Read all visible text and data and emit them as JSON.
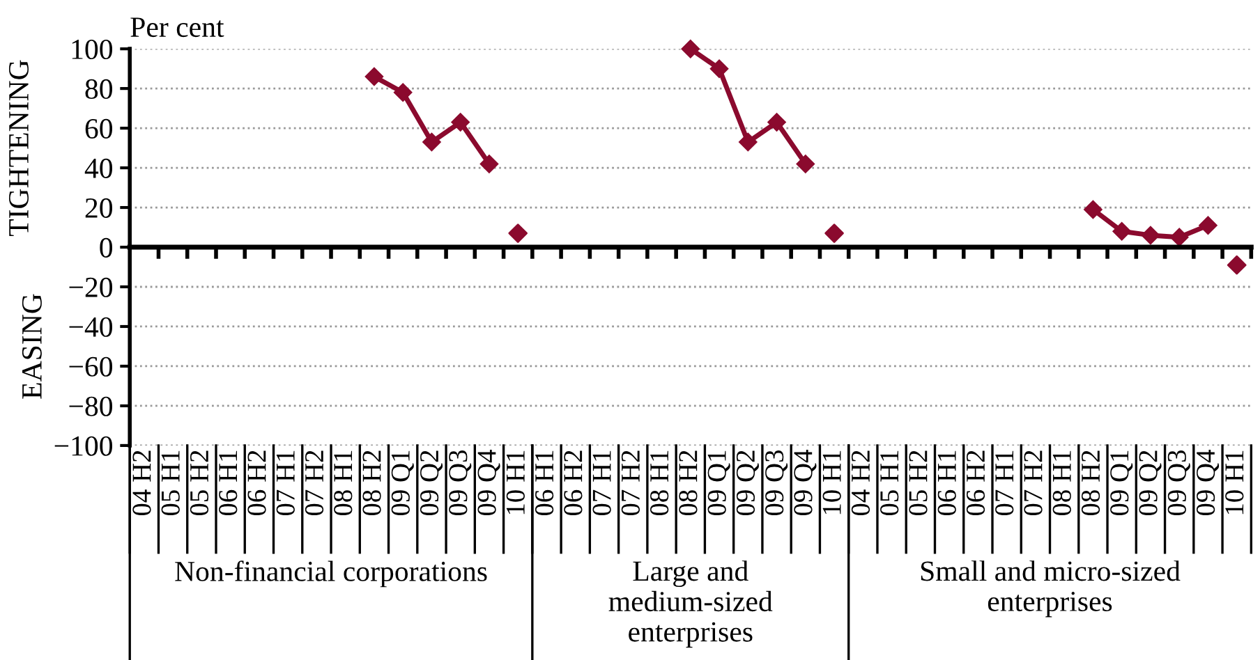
{
  "chart_data": {
    "type": "line",
    "ylabel": "TIGHTENING",
    "annotations": [
      "Per cent",
      "EASING",
      "Non-financial corporations",
      "Large and\nmedium-sized\nenterprises",
      "Small and micro-sized\nenterprises"
    ],
    "categories": [
      "04 H2",
      "05 H1",
      "05 H2",
      "06 H1",
      "06 H2",
      "07 H1",
      "07 H2",
      "08 H1",
      "08 H2",
      "09 Q1",
      "09 Q2",
      "09 Q3",
      "09 Q4",
      "10 H1",
      "06 H1",
      "06 H2",
      "07 H1",
      "07 H2",
      "08 H1",
      "08 H2",
      "09 Q1",
      "09 Q2",
      "09 Q3",
      "09 Q4",
      "10 H1",
      "04 H2",
      "05 H1",
      "05 H2",
      "06 H1",
      "06 H2",
      "07 H1",
      "07 H2",
      "08 H1",
      "08 H2",
      "09 Q1",
      "09 Q2",
      "09 Q3",
      "09 Q4",
      "10 H1"
    ],
    "series": [
      {
        "color": "#8b0a2e",
        "values": [
          null,
          null,
          null,
          null,
          null,
          null,
          null,
          null,
          86,
          78,
          53,
          63,
          42,
          null,
          null,
          null,
          null,
          null,
          null,
          100,
          90,
          53,
          63,
          42,
          null,
          null,
          null,
          null,
          null,
          null,
          null,
          null,
          null,
          19,
          8,
          6,
          5,
          11,
          null
        ]
      },
      {
        "type": "scatter",
        "color": "#8b0a2e",
        "values": [
          null,
          null,
          null,
          null,
          null,
          null,
          null,
          null,
          null,
          null,
          null,
          null,
          null,
          7,
          null,
          null,
          null,
          null,
          null,
          null,
          null,
          null,
          null,
          null,
          7,
          null,
          null,
          null,
          null,
          null,
          null,
          null,
          null,
          null,
          null,
          null,
          null,
          null,
          -9
        ]
      }
    ],
    "ylim": [
      -100,
      100
    ],
    "yticks": [
      {
        "value": -100,
        "label": "−100"
      },
      {
        "value": -80,
        "label": "−80"
      },
      {
        "value": -60,
        "label": "−60"
      },
      {
        "value": -40,
        "label": "−40"
      },
      {
        "value": -20,
        "label": "−20"
      },
      0,
      20,
      40,
      60,
      80,
      100
    ],
    "grid": "y",
    "marker": "diamond",
    "line_style": "solid"
  }
}
